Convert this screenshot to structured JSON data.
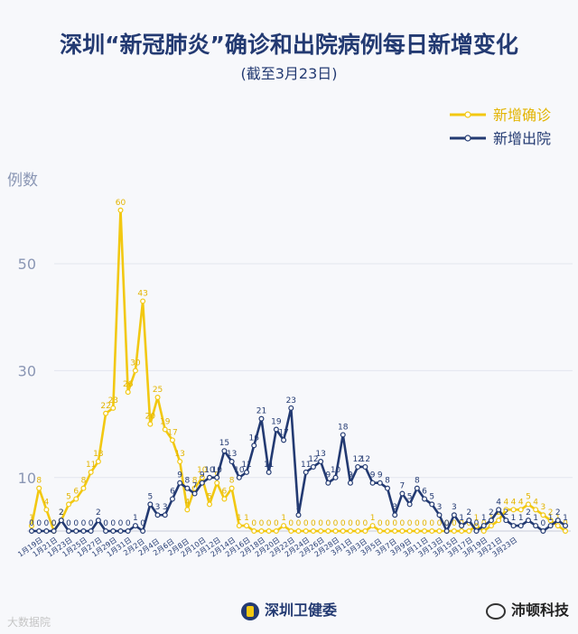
{
  "title": "深圳“新冠肺炎”确诊和出院病例每日新增变化",
  "subtitle": "(截至3月23日)",
  "footer": {
    "org": "深圳卫健委"
  },
  "watermark": {
    "left": "大数据院",
    "right": "沛顿科技"
  },
  "chart_data": {
    "type": "line",
    "ylabel": "例数",
    "yticks": [
      10,
      30,
      50
    ],
    "ylim": [
      0,
      62
    ],
    "legend_position": "top-right",
    "grid": true,
    "colors": {
      "confirmed": "#f2c811",
      "discharged": "#233a72"
    },
    "x_tick_labels": [
      "1月19日",
      "1月21日",
      "1月23日",
      "1月25日",
      "1月27日",
      "1月29日",
      "1月31日",
      "2月2日",
      "2月4日",
      "2月6日",
      "2月8日",
      "2月10日",
      "2月12日",
      "2月14日",
      "2月16日",
      "2月18日",
      "2月20日",
      "2月22日",
      "2月24日",
      "2月26日",
      "2月28日",
      "3月1日",
      "3月3日",
      "3月5日",
      "3月7日",
      "3月9日",
      "3月11日",
      "3月13日",
      "3月15日",
      "3月17日",
      "3月19日",
      "3月21日",
      "3月23日"
    ],
    "series": [
      {
        "name": "新增确诊",
        "key": "confirmed",
        "values": [
          1,
          8,
          4,
          0,
          2,
          5,
          6,
          8,
          11,
          13,
          22,
          23,
          60,
          26,
          30,
          43,
          20,
          25,
          19,
          17,
          13,
          4,
          8,
          10,
          5,
          9,
          6,
          8,
          1,
          1,
          0,
          0,
          0,
          0,
          1,
          0,
          0,
          0,
          0,
          0,
          0,
          0,
          0,
          0,
          0,
          0,
          1,
          0,
          0,
          0,
          0,
          0,
          0,
          0,
          0,
          0,
          0,
          0,
          0,
          0,
          1,
          0,
          1,
          2,
          4,
          4,
          4,
          5,
          4,
          3,
          2,
          1,
          0
        ]
      },
      {
        "name": "新增出院",
        "key": "discharged",
        "values": [
          0,
          0,
          0,
          0,
          2,
          0,
          0,
          0,
          0,
          2,
          0,
          0,
          0,
          0,
          1,
          0,
          5,
          3,
          3,
          6,
          9,
          8,
          7,
          9,
          10,
          10,
          15,
          13,
          10,
          11,
          16,
          21,
          11,
          19,
          17,
          23,
          3,
          11,
          12,
          13,
          9,
          10,
          18,
          9,
          12,
          12,
          9,
          9,
          8,
          3,
          7,
          5,
          8,
          6,
          5,
          3,
          0,
          3,
          1,
          2,
          0,
          1,
          2,
          4,
          2,
          1,
          1,
          2,
          1,
          0,
          1,
          2,
          1
        ]
      }
    ]
  }
}
